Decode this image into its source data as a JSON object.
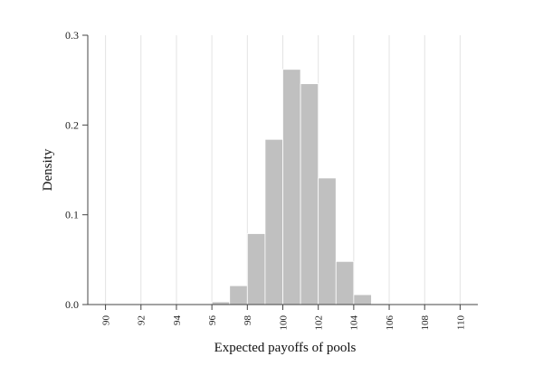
{
  "chart_data": {
    "type": "bar",
    "title": "",
    "xlabel": "Expected payoffs of pools",
    "ylabel": "Density",
    "xlim": [
      89,
      111
    ],
    "ylim": [
      0,
      0.3
    ],
    "x_ticks": [
      90,
      92,
      94,
      96,
      98,
      100,
      102,
      104,
      106,
      108,
      110
    ],
    "x_tick_labels": [
      "90",
      "92",
      "94",
      "96",
      "98",
      "100",
      "102",
      "104",
      "106",
      "108",
      "110"
    ],
    "y_ticks": [
      0,
      0.1,
      0.2,
      0.3
    ],
    "y_tick_labels": [
      "0.0",
      "0.1",
      "0.2",
      "0.3"
    ],
    "grid": "vertical",
    "bin_width": 1,
    "bins": [
      {
        "start": 96,
        "end": 97,
        "density": 0.003
      },
      {
        "start": 97,
        "end": 98,
        "density": 0.021
      },
      {
        "start": 98,
        "end": 99,
        "density": 0.079
      },
      {
        "start": 99,
        "end": 100,
        "density": 0.184
      },
      {
        "start": 100,
        "end": 101,
        "density": 0.262
      },
      {
        "start": 101,
        "end": 102,
        "density": 0.246
      },
      {
        "start": 102,
        "end": 103,
        "density": 0.141
      },
      {
        "start": 103,
        "end": 104,
        "density": 0.048
      },
      {
        "start": 104,
        "end": 105,
        "density": 0.011
      },
      {
        "start": 105,
        "end": 106,
        "density": 0.001
      }
    ],
    "colors": {
      "bar_fill": "#c0c0c0",
      "bar_edge": "#ffffff",
      "grid": "#e3e3e3",
      "axis": "#444444"
    }
  }
}
